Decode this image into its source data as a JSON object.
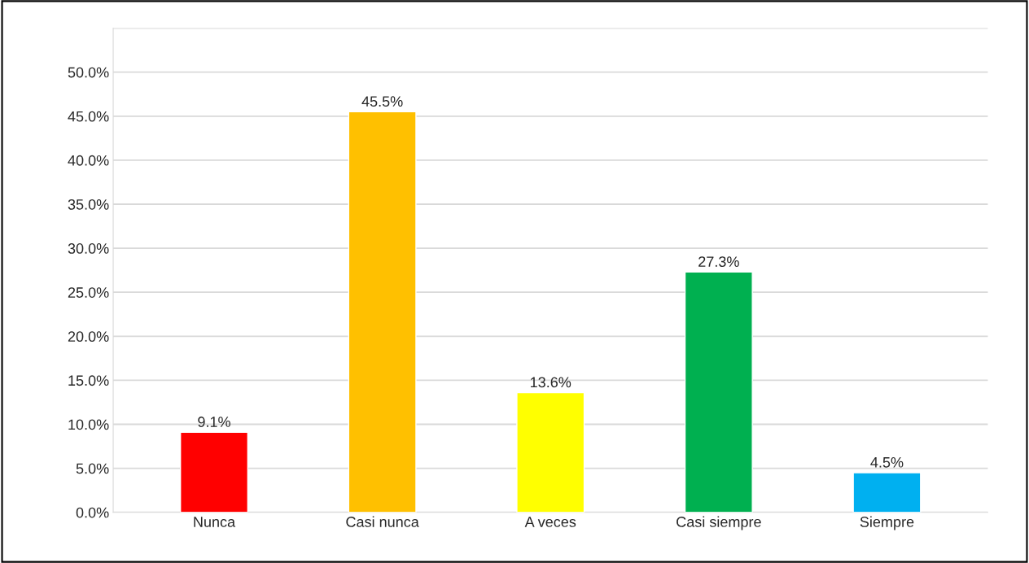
{
  "chart_data": {
    "type": "bar",
    "categories": [
      "Nunca",
      "Casi nunca",
      "A veces",
      "Casi siempre",
      "Siempre"
    ],
    "values": [
      9.1,
      45.5,
      13.6,
      27.3,
      4.5
    ],
    "colors": [
      "#ff0000",
      "#ffc000",
      "#ffff00",
      "#00b050",
      "#00b0f0"
    ],
    "value_labels": [
      "9.1%",
      "45.5%",
      "13.6%",
      "27.3%",
      "4.5%"
    ],
    "ylim": [
      0,
      55
    ],
    "yticks": [
      {
        "value": 0,
        "label": "0.0%"
      },
      {
        "value": 5,
        "label": "5.0%"
      },
      {
        "value": 10,
        "label": "10.0%"
      },
      {
        "value": 15,
        "label": "15.0%"
      },
      {
        "value": 20,
        "label": "20.0%"
      },
      {
        "value": 25,
        "label": "25.0%"
      },
      {
        "value": 30,
        "label": "30.0%"
      },
      {
        "value": 35,
        "label": "35.0%"
      },
      {
        "value": 40,
        "label": "40.0%"
      },
      {
        "value": 45,
        "label": "45.0%"
      },
      {
        "value": 50,
        "label": "50.0%"
      },
      {
        "value": 55,
        "label": null
      }
    ],
    "grid": "y"
  }
}
